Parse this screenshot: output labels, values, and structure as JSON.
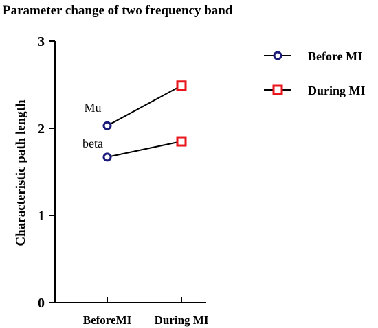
{
  "chart_data": {
    "type": "line",
    "title": "Parameter change  of two frequency band",
    "xlabel": "",
    "ylabel": "Characteristic path length",
    "categories": [
      "BeforeMI",
      "During MI"
    ],
    "ylim": [
      0,
      3
    ],
    "yticks": [
      "0",
      "1",
      "2",
      "3"
    ],
    "grid": false,
    "legend_position": "top-right",
    "legend": [
      {
        "label": "Before MI",
        "marker": "circle",
        "color": "#1a1a7a"
      },
      {
        "label": "During MI",
        "marker": "square",
        "color": "#e8161b"
      }
    ],
    "series": [
      {
        "name": "Mu",
        "values": [
          2.03,
          2.49
        ]
      },
      {
        "name": "beta",
        "values": [
          1.67,
          1.85
        ]
      }
    ]
  }
}
